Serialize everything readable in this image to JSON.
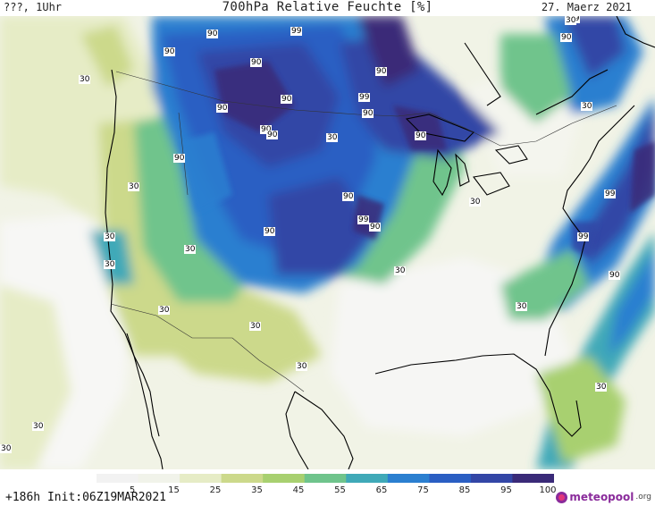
{
  "header": {
    "left": "???, 1Uhr",
    "title": "700hPa Relative Feuchte [%]",
    "date": "27. Maerz 2021"
  },
  "map": {
    "contour_labels": [
      "90",
      "99",
      "90",
      "90",
      "90",
      "90",
      "99",
      "90",
      "90",
      "90",
      "90",
      "90",
      "90",
      "90",
      "90",
      "99",
      "90",
      "99",
      "90",
      "30",
      "30",
      "30",
      "30",
      "30",
      "30",
      "30",
      "30",
      "30",
      "30",
      "30",
      "99",
      "30",
      "90",
      "30",
      "30",
      "99",
      "30",
      "30",
      "30"
    ]
  },
  "legend": {
    "ticks": [
      "5",
      "15",
      "25",
      "35",
      "45",
      "55",
      "65",
      "75",
      "85",
      "95",
      "100"
    ],
    "colors": [
      "#f2f2f2",
      "#f1f3ea",
      "#e6ecc6",
      "#ccd98b",
      "#a8d070",
      "#6fc48c",
      "#3fa9b8",
      "#2b7fd0",
      "#2a5ec3",
      "#3346a6",
      "#3a2a78"
    ]
  },
  "footer": {
    "run_info": "+186h  Init:06Z19MAR2021",
    "brand": "meteopool",
    "brand_tld": ".org"
  }
}
